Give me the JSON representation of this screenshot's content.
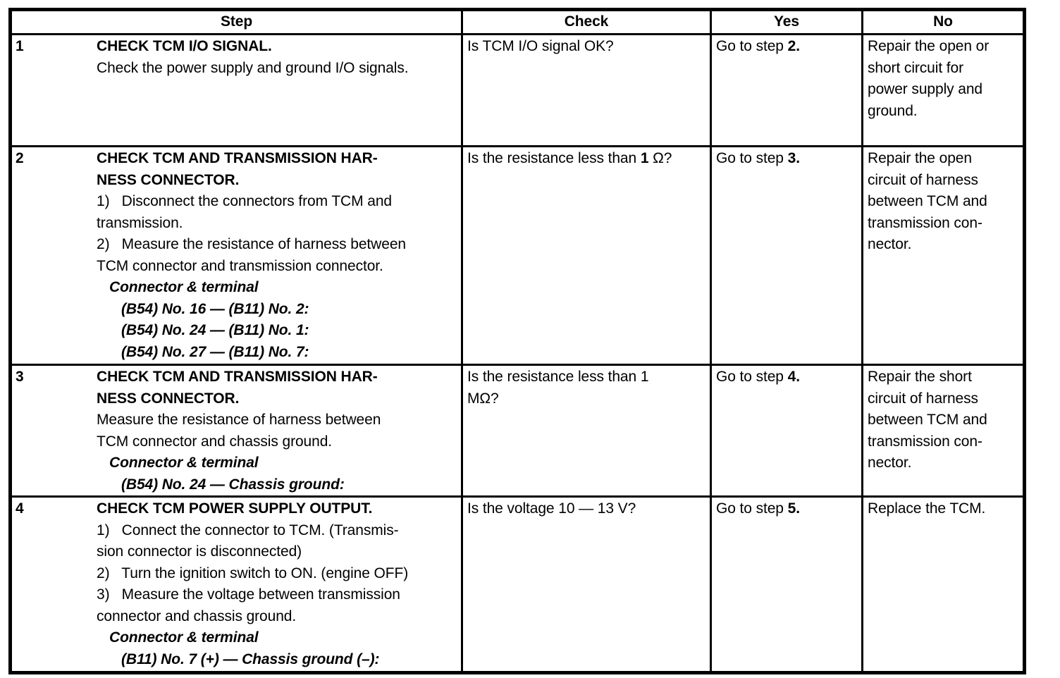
{
  "colors": {
    "line": "#000000",
    "background": "#ffffff",
    "text": "#000000"
  },
  "table": {
    "headers": [
      "Step",
      "Check",
      "Yes",
      "No"
    ],
    "rows": [
      {
        "step_no": "1",
        "step": [
          {
            "style": "title",
            "runs": [
              {
                "t": "CHECK TCM I/O SIGNAL."
              }
            ]
          },
          {
            "style": "body",
            "runs": [
              {
                "t": "Check the power supply and ground I/O signals."
              }
            ]
          }
        ],
        "check": [
          {
            "style": "body",
            "runs": [
              {
                "t": "Is TCM I/O signal OK?"
              }
            ]
          }
        ],
        "yes": [
          {
            "style": "body",
            "runs": [
              {
                "t": "Go to step "
              },
              {
                "t": "2.",
                "b": true
              }
            ]
          }
        ],
        "no": [
          {
            "style": "body",
            "runs": [
              {
                "t": "Repair the open or\nshort circuit for\npower supply and\nground."
              }
            ]
          }
        ]
      },
      {
        "step_no": "2",
        "step": [
          {
            "style": "title",
            "runs": [
              {
                "t": "CHECK TCM AND TRANSMISSION HAR-\nNESS CONNECTOR."
              }
            ]
          },
          {
            "style": "body",
            "runs": [
              {
                "t": "1)   Disconnect the connectors from TCM and\ntransmission."
              }
            ]
          },
          {
            "style": "body",
            "runs": [
              {
                "t": "2)   Measure the resistance of harness between\nTCM connector and transmission connector."
              }
            ]
          },
          {
            "style": "termhead",
            "runs": [
              {
                "t": "Connector & terminal"
              }
            ]
          },
          {
            "style": "term",
            "runs": [
              {
                "t": "(B54) No. 16 — (B11) No. 2:"
              }
            ]
          },
          {
            "style": "term",
            "runs": [
              {
                "t": "(B54) No. 24 — (B11) No. 1:"
              }
            ]
          },
          {
            "style": "term",
            "runs": [
              {
                "t": "(B54) No. 27 — (B11) No. 7:"
              }
            ]
          }
        ],
        "check": [
          {
            "style": "body",
            "runs": [
              {
                "t": "Is the resistance less than "
              },
              {
                "t": "1",
                "b": true
              },
              {
                "t": " Ω?"
              }
            ]
          }
        ],
        "yes": [
          {
            "style": "body",
            "runs": [
              {
                "t": "Go to step "
              },
              {
                "t": "3.",
                "b": true
              }
            ]
          }
        ],
        "no": [
          {
            "style": "body",
            "runs": [
              {
                "t": "Repair the open\ncircuit of harness\nbetween TCM and\ntransmission con-\nnector."
              }
            ]
          }
        ]
      },
      {
        "step_no": "3",
        "step": [
          {
            "style": "title",
            "runs": [
              {
                "t": "CHECK TCM AND TRANSMISSION HAR-\nNESS CONNECTOR."
              }
            ]
          },
          {
            "style": "body",
            "runs": [
              {
                "t": "Measure the resistance of harness between\nTCM connector and chassis ground."
              }
            ]
          },
          {
            "style": "termhead",
            "runs": [
              {
                "t": "Connector & terminal"
              }
            ]
          },
          {
            "style": "term",
            "runs": [
              {
                "t": "(B54) No. 24 — Chassis ground:"
              }
            ]
          }
        ],
        "check": [
          {
            "style": "body",
            "runs": [
              {
                "t": "Is the resistance less than 1\nMΩ?"
              }
            ]
          }
        ],
        "yes": [
          {
            "style": "body",
            "runs": [
              {
                "t": "Go to step "
              },
              {
                "t": "4.",
                "b": true
              }
            ]
          }
        ],
        "no": [
          {
            "style": "body",
            "runs": [
              {
                "t": "Repair the short\ncircuit of harness\nbetween TCM and\ntransmission con-\nnector."
              }
            ]
          }
        ]
      },
      {
        "step_no": "4",
        "step": [
          {
            "style": "title",
            "runs": [
              {
                "t": "CHECK TCM POWER SUPPLY OUTPUT."
              }
            ]
          },
          {
            "style": "body",
            "runs": [
              {
                "t": "1)   Connect the connector to TCM. (Transmis-\nsion connector is disconnected)"
              }
            ]
          },
          {
            "style": "body",
            "runs": [
              {
                "t": "2)   Turn the ignition switch to ON. (engine OFF)"
              }
            ]
          },
          {
            "style": "body",
            "runs": [
              {
                "t": "3)   Measure the voltage between transmission\nconnector and chassis ground."
              }
            ]
          },
          {
            "style": "termhead",
            "runs": [
              {
                "t": "Connector & terminal"
              }
            ]
          },
          {
            "style": "term",
            "runs": [
              {
                "t": "(B11) No. 7 (+) — Chassis ground (–):"
              }
            ]
          }
        ],
        "check": [
          {
            "style": "body",
            "runs": [
              {
                "t": "Is the voltage 10 — 13 V?"
              }
            ]
          }
        ],
        "yes": [
          {
            "style": "body",
            "runs": [
              {
                "t": "Go to step "
              },
              {
                "t": "5.",
                "b": true
              }
            ]
          }
        ],
        "no": [
          {
            "style": "body",
            "runs": [
              {
                "t": "Replace the TCM."
              }
            ]
          }
        ]
      }
    ]
  }
}
